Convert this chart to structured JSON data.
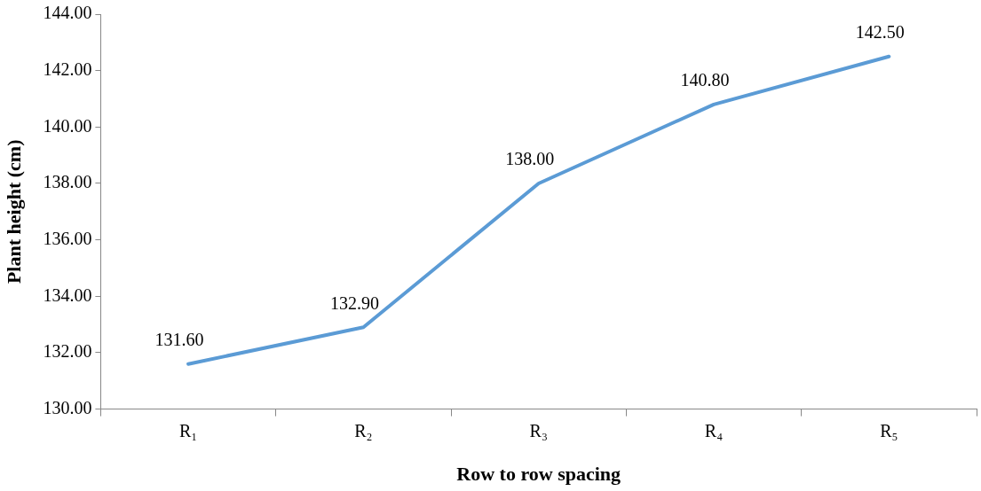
{
  "chart_data": {
    "type": "line",
    "xlabel": "Row to row spacing",
    "ylabel": "Plant height (cm)",
    "categories": [
      "R₁",
      "R₂",
      "R₃",
      "R₄",
      "R₅"
    ],
    "series": [
      {
        "color": "#5b9bd5",
        "values": [
          131.6,
          132.9,
          138.0,
          140.8,
          142.5
        ],
        "value_labels": [
          "131.60",
          "132.90",
          "138.00",
          "140.80",
          "142.50"
        ]
      }
    ],
    "ylim": [
      130,
      144
    ],
    "yticks": [
      {
        "value": 130,
        "label": "130.00"
      },
      {
        "value": 132,
        "label": "132.00"
      },
      {
        "value": 134,
        "label": "134.00"
      },
      {
        "value": 136,
        "label": "136.00"
      },
      {
        "value": 138,
        "label": "138.00"
      },
      {
        "value": 140,
        "label": "140.00"
      },
      {
        "value": 142,
        "label": "142.00"
      },
      {
        "value": 144,
        "label": "144.00"
      }
    ],
    "grid": false,
    "legend": false,
    "marker": "none",
    "line_style": "solid"
  }
}
